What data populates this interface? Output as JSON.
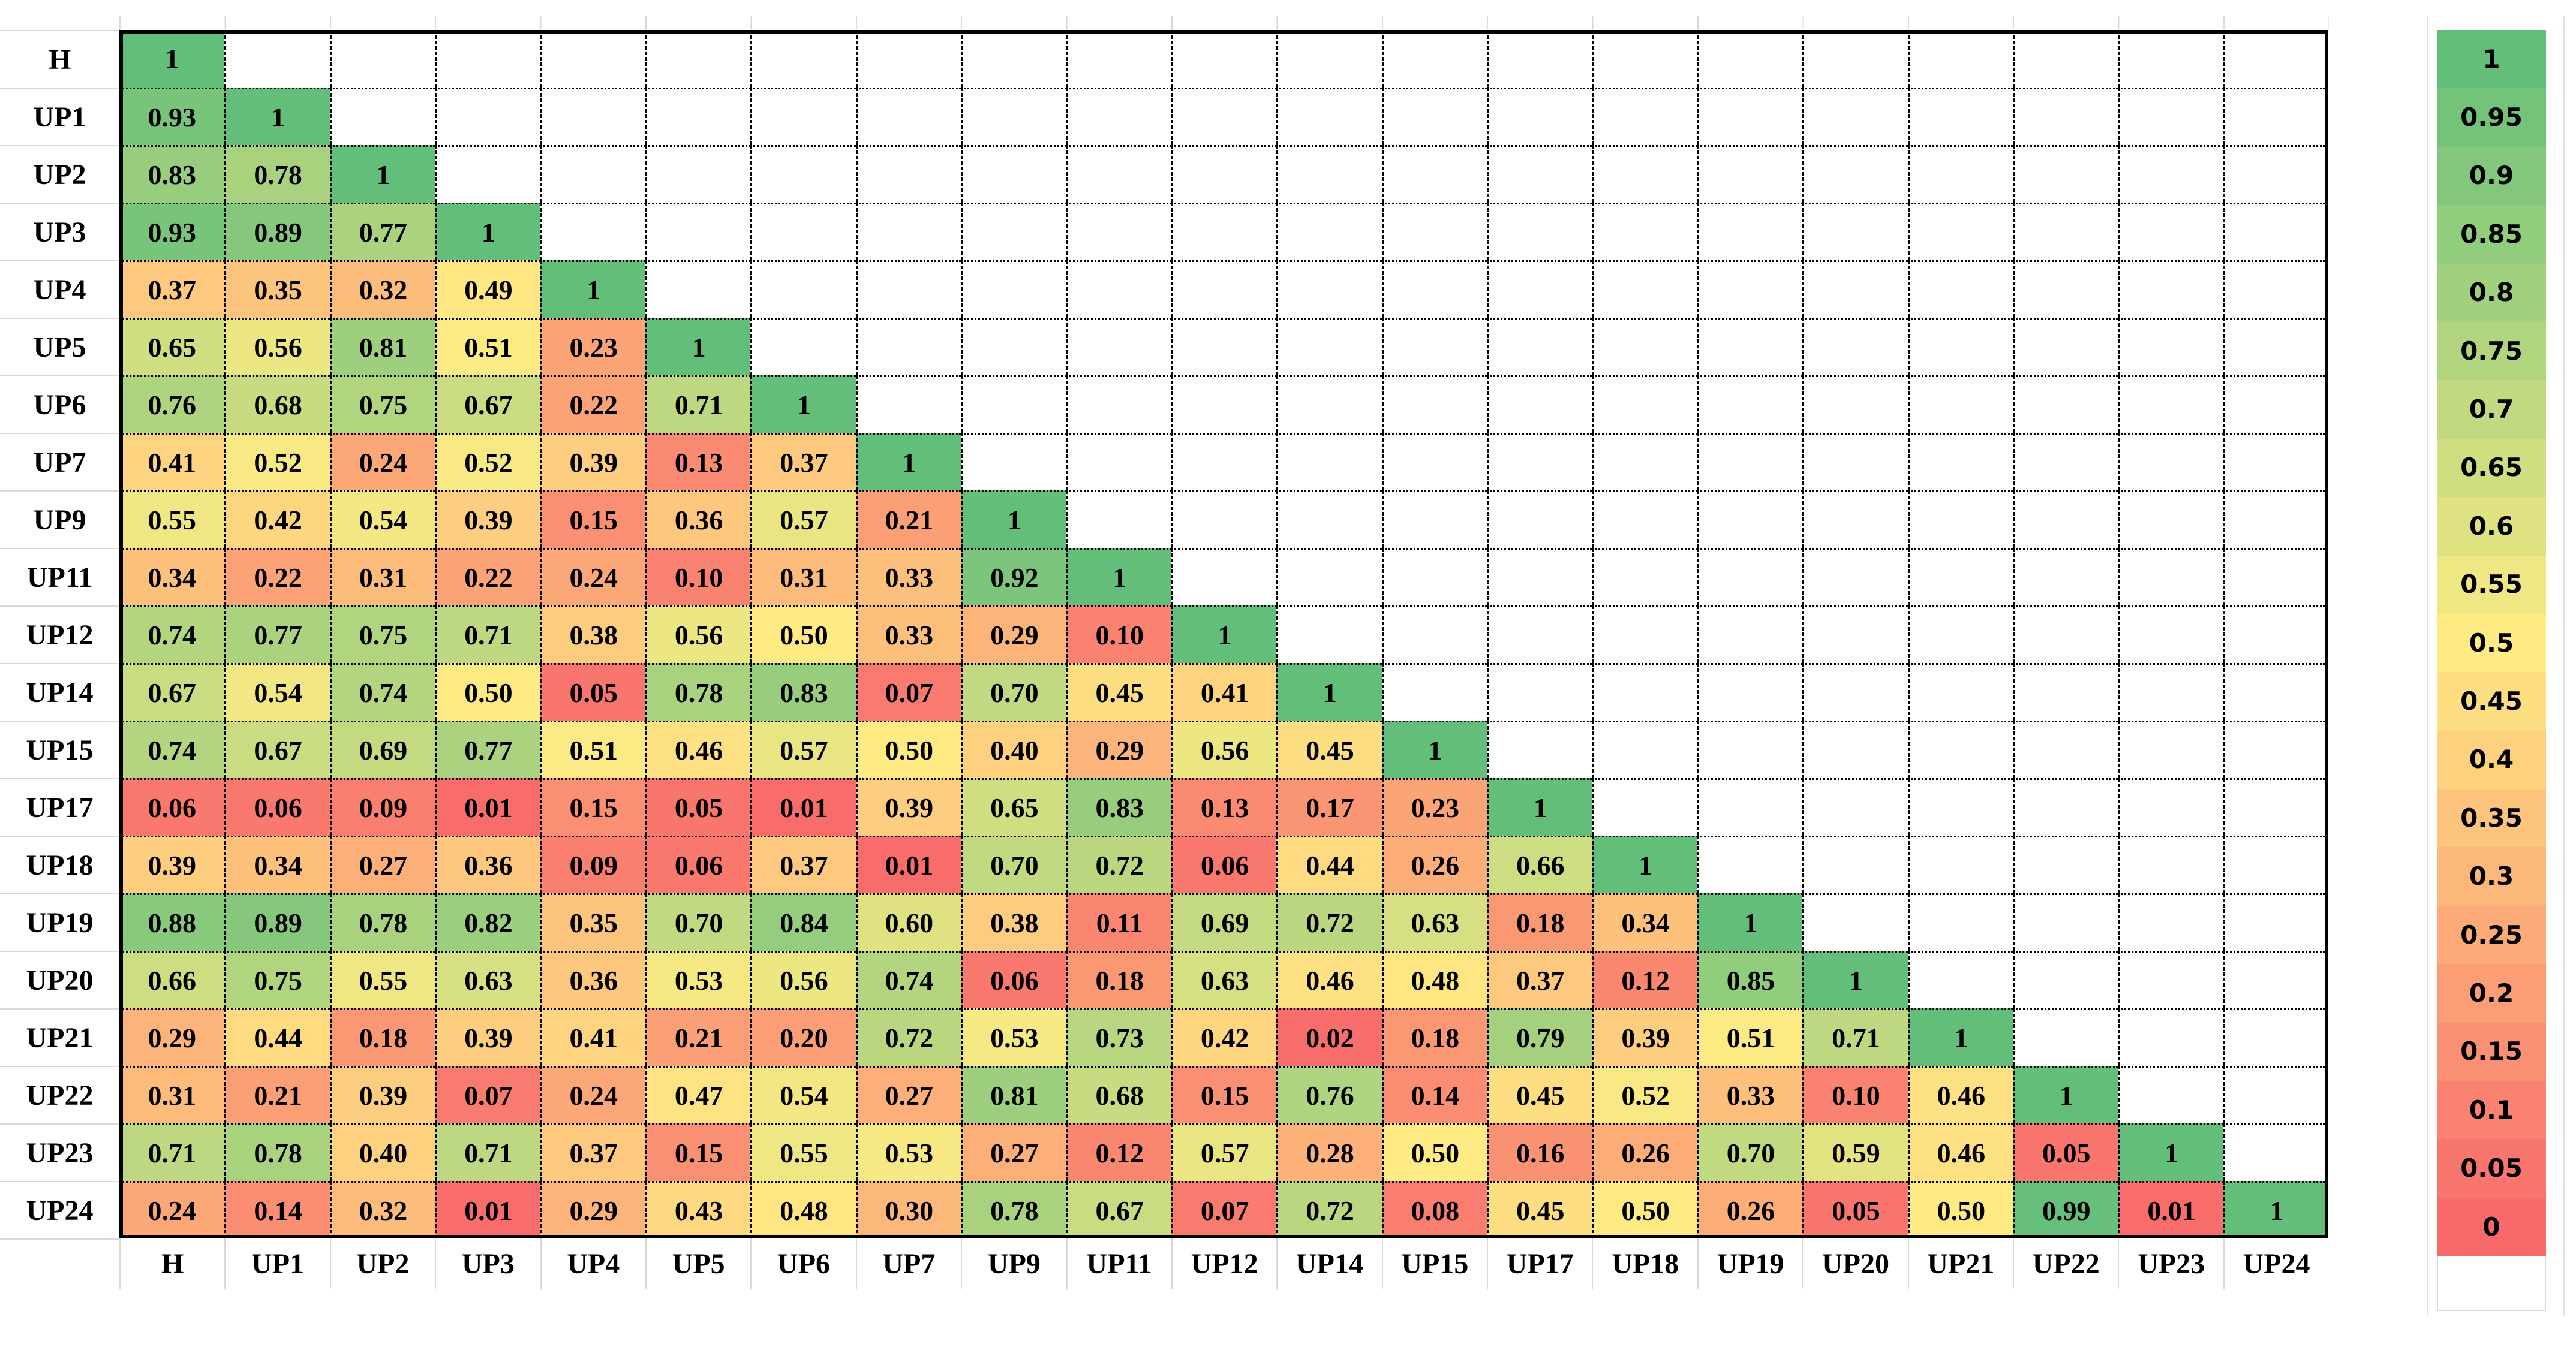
{
  "chart_data": {
    "type": "heatmap",
    "description": "Lower-triangular correlation matrix heatmap with red-yellow-green color scale and step legend",
    "labels": [
      "H",
      "UP1",
      "UP2",
      "UP3",
      "UP4",
      "UP5",
      "UP6",
      "UP7",
      "UP9",
      "UP11",
      "UP12",
      "UP14",
      "UP15",
      "UP17",
      "UP18",
      "UP19",
      "UP20",
      "UP21",
      "UP22",
      "UP23",
      "UP24"
    ],
    "rows": [
      [
        "1"
      ],
      [
        "0.93",
        "1"
      ],
      [
        "0.83",
        "0.78",
        "1"
      ],
      [
        "0.93",
        "0.89",
        "0.77",
        "1"
      ],
      [
        "0.37",
        "0.35",
        "0.32",
        "0.49",
        "1"
      ],
      [
        "0.65",
        "0.56",
        "0.81",
        "0.51",
        "0.23",
        "1"
      ],
      [
        "0.76",
        "0.68",
        "0.75",
        "0.67",
        "0.22",
        "0.71",
        "1"
      ],
      [
        "0.41",
        "0.52",
        "0.24",
        "0.52",
        "0.39",
        "0.13",
        "0.37",
        "1"
      ],
      [
        "0.55",
        "0.42",
        "0.54",
        "0.39",
        "0.15",
        "0.36",
        "0.57",
        "0.21",
        "1"
      ],
      [
        "0.34",
        "0.22",
        "0.31",
        "0.22",
        "0.24",
        "0.10",
        "0.31",
        "0.33",
        "0.92",
        "1"
      ],
      [
        "0.74",
        "0.77",
        "0.75",
        "0.71",
        "0.38",
        "0.56",
        "0.50",
        "0.33",
        "0.29",
        "0.10",
        "1"
      ],
      [
        "0.67",
        "0.54",
        "0.74",
        "0.50",
        "0.05",
        "0.78",
        "0.83",
        "0.07",
        "0.70",
        "0.45",
        "0.41",
        "1"
      ],
      [
        "0.74",
        "0.67",
        "0.69",
        "0.77",
        "0.51",
        "0.46",
        "0.57",
        "0.50",
        "0.40",
        "0.29",
        "0.56",
        "0.45",
        "1"
      ],
      [
        "0.06",
        "0.06",
        "0.09",
        "0.01",
        "0.15",
        "0.05",
        "0.01",
        "0.39",
        "0.65",
        "0.83",
        "0.13",
        "0.17",
        "0.23",
        "1"
      ],
      [
        "0.39",
        "0.34",
        "0.27",
        "0.36",
        "0.09",
        "0.06",
        "0.37",
        "0.01",
        "0.70",
        "0.72",
        "0.06",
        "0.44",
        "0.26",
        "0.66",
        "1"
      ],
      [
        "0.88",
        "0.89",
        "0.78",
        "0.82",
        "0.35",
        "0.70",
        "0.84",
        "0.60",
        "0.38",
        "0.11",
        "0.69",
        "0.72",
        "0.63",
        "0.18",
        "0.34",
        "1"
      ],
      [
        "0.66",
        "0.75",
        "0.55",
        "0.63",
        "0.36",
        "0.53",
        "0.56",
        "0.74",
        "0.06",
        "0.18",
        "0.63",
        "0.46",
        "0.48",
        "0.37",
        "0.12",
        "0.85",
        "1"
      ],
      [
        "0.29",
        "0.44",
        "0.18",
        "0.39",
        "0.41",
        "0.21",
        "0.20",
        "0.72",
        "0.53",
        "0.73",
        "0.42",
        "0.02",
        "0.18",
        "0.79",
        "0.39",
        "0.51",
        "0.71",
        "1"
      ],
      [
        "0.31",
        "0.21",
        "0.39",
        "0.07",
        "0.24",
        "0.47",
        "0.54",
        "0.27",
        "0.81",
        "0.68",
        "0.15",
        "0.76",
        "0.14",
        "0.45",
        "0.52",
        "0.33",
        "0.10",
        "0.46",
        "1"
      ],
      [
        "0.71",
        "0.78",
        "0.40",
        "0.71",
        "0.37",
        "0.15",
        "0.55",
        "0.53",
        "0.27",
        "0.12",
        "0.57",
        "0.28",
        "0.50",
        "0.16",
        "0.26",
        "0.70",
        "0.59",
        "0.46",
        "0.05",
        "1"
      ],
      [
        "0.24",
        "0.14",
        "0.32",
        "0.01",
        "0.29",
        "0.43",
        "0.48",
        "0.30",
        "0.78",
        "0.67",
        "0.07",
        "0.72",
        "0.08",
        "0.45",
        "0.50",
        "0.26",
        "0.05",
        "0.50",
        "0.99",
        "0.01",
        "1"
      ]
    ],
    "legend": {
      "position": "right",
      "values": [
        "1",
        "0.95",
        "0.9",
        "0.85",
        "0.8",
        "0.75",
        "0.7",
        "0.65",
        "0.6",
        "0.55",
        "0.5",
        "0.45",
        "0.4",
        "0.35",
        "0.3",
        "0.25",
        "0.2",
        "0.15",
        "0.1",
        "0.05",
        "0"
      ]
    },
    "colorscale": {
      "min": 0,
      "mid": 0.5,
      "max": 1,
      "min_color": "#F8696B",
      "mid_color": "#FFEB84",
      "max_color": "#63BE7A"
    },
    "grid_style": {
      "frame_color": "#000000",
      "column_divider": "dashed",
      "row_divider": "dotted",
      "sheet_gridline_color": "#D9D9D9"
    }
  }
}
